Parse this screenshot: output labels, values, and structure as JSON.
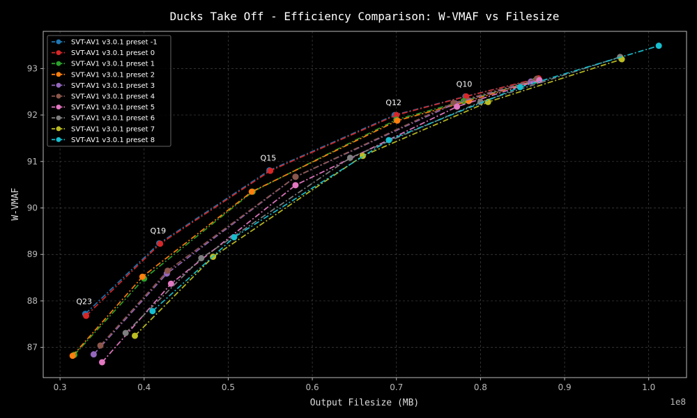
{
  "chart_data": {
    "type": "line",
    "title": "Ducks Take Off - Efficiency Comparison: W-VMAF vs Filesize",
    "xlabel": "Output Filesize (MB)",
    "ylabel": "W-VMAF",
    "x_offset_label": "1e8",
    "xlim": [
      0.28,
      1.045
    ],
    "ylim": [
      86.35,
      93.8
    ],
    "xticks": [
      0.3,
      0.4,
      0.5,
      0.6,
      0.7,
      0.8,
      0.9,
      1.0
    ],
    "xtick_labels": [
      "0.3",
      "0.4",
      "0.5",
      "0.6",
      "0.7",
      "0.8",
      "0.9",
      "1.0"
    ],
    "yticks": [
      87,
      88,
      89,
      90,
      91,
      92,
      93
    ],
    "ytick_labels": [
      "87",
      "88",
      "89",
      "90",
      "91",
      "92",
      "93"
    ],
    "grid": true,
    "legend_position": "top-left",
    "annotations": [
      {
        "text": "Q23",
        "x": 0.33,
        "y": 87.72
      },
      {
        "text": "Q19",
        "x": 0.418,
        "y": 89.24
      },
      {
        "text": "Q15",
        "x": 0.549,
        "y": 90.81
      },
      {
        "text": "Q12",
        "x": 0.698,
        "y": 92.0
      },
      {
        "text": "Q10",
        "x": 0.782,
        "y": 92.4
      }
    ],
    "series": [
      {
        "name": "SVT-AV1 v3.0.1 preset -1",
        "color": "#1f77b4",
        "x": [
          0.33,
          0.418,
          0.549,
          0.698,
          0.782,
          0.868
        ],
        "y": [
          87.72,
          89.24,
          90.81,
          92.0,
          92.4,
          92.78
        ]
      },
      {
        "name": "SVT-AV1 v3.0.1 preset 0",
        "color": "#d62728",
        "x": [
          0.331,
          0.419,
          0.55,
          0.7,
          0.783,
          0.869
        ],
        "y": [
          87.68,
          89.23,
          90.8,
          92.0,
          92.4,
          92.79
        ]
      },
      {
        "name": "SVT-AV1 v3.0.1 preset 1",
        "color": "#2ca02c",
        "x": [
          0.317,
          0.4,
          0.529,
          0.7,
          0.78,
          0.865
        ],
        "y": [
          86.84,
          88.48,
          90.35,
          91.9,
          92.3,
          92.74
        ]
      },
      {
        "name": "SVT-AV1 v3.0.1 preset 2",
        "color": "#ff7f0e",
        "x": [
          0.315,
          0.398,
          0.528,
          0.701,
          0.786,
          0.868
        ],
        "y": [
          86.82,
          88.52,
          90.35,
          91.88,
          92.3,
          92.76
        ]
      },
      {
        "name": "SVT-AV1 v3.0.1 preset 3",
        "color": "#9467bd",
        "x": [
          0.34,
          0.427,
          0.58,
          0.77,
          0.86
        ],
        "y": [
          86.85,
          88.59,
          90.67,
          92.25,
          92.72
        ]
      },
      {
        "name": "SVT-AV1 v3.0.1 preset 4",
        "color": "#8c564b",
        "x": [
          0.348,
          0.428,
          0.58,
          0.768,
          0.867
        ],
        "y": [
          87.04,
          88.65,
          90.67,
          92.26,
          92.78
        ]
      },
      {
        "name": "SVT-AV1 v3.0.1 preset 5",
        "color": "#e377c2",
        "x": [
          0.35,
          0.432,
          0.58,
          0.772,
          0.87
        ],
        "y": [
          86.68,
          88.37,
          90.49,
          92.18,
          92.75
        ]
      },
      {
        "name": "SVT-AV1 v3.0.1 preset 6",
        "color": "#7f7f7f",
        "x": [
          0.378,
          0.468,
          0.645,
          0.8,
          0.966
        ],
        "y": [
          87.31,
          88.92,
          91.08,
          92.28,
          93.25
        ]
      },
      {
        "name": "SVT-AV1 v3.0.1 preset 7",
        "color": "#bcbd22",
        "x": [
          0.389,
          0.482,
          0.66,
          0.809,
          0.968
        ],
        "y": [
          87.25,
          88.95,
          91.12,
          92.28,
          93.2
        ]
      },
      {
        "name": "SVT-AV1 v3.0.1 preset 8",
        "color": "#17becf",
        "x": [
          0.41,
          0.507,
          0.691,
          0.847,
          1.012
        ],
        "y": [
          87.78,
          89.37,
          91.46,
          92.6,
          93.49
        ]
      }
    ]
  }
}
